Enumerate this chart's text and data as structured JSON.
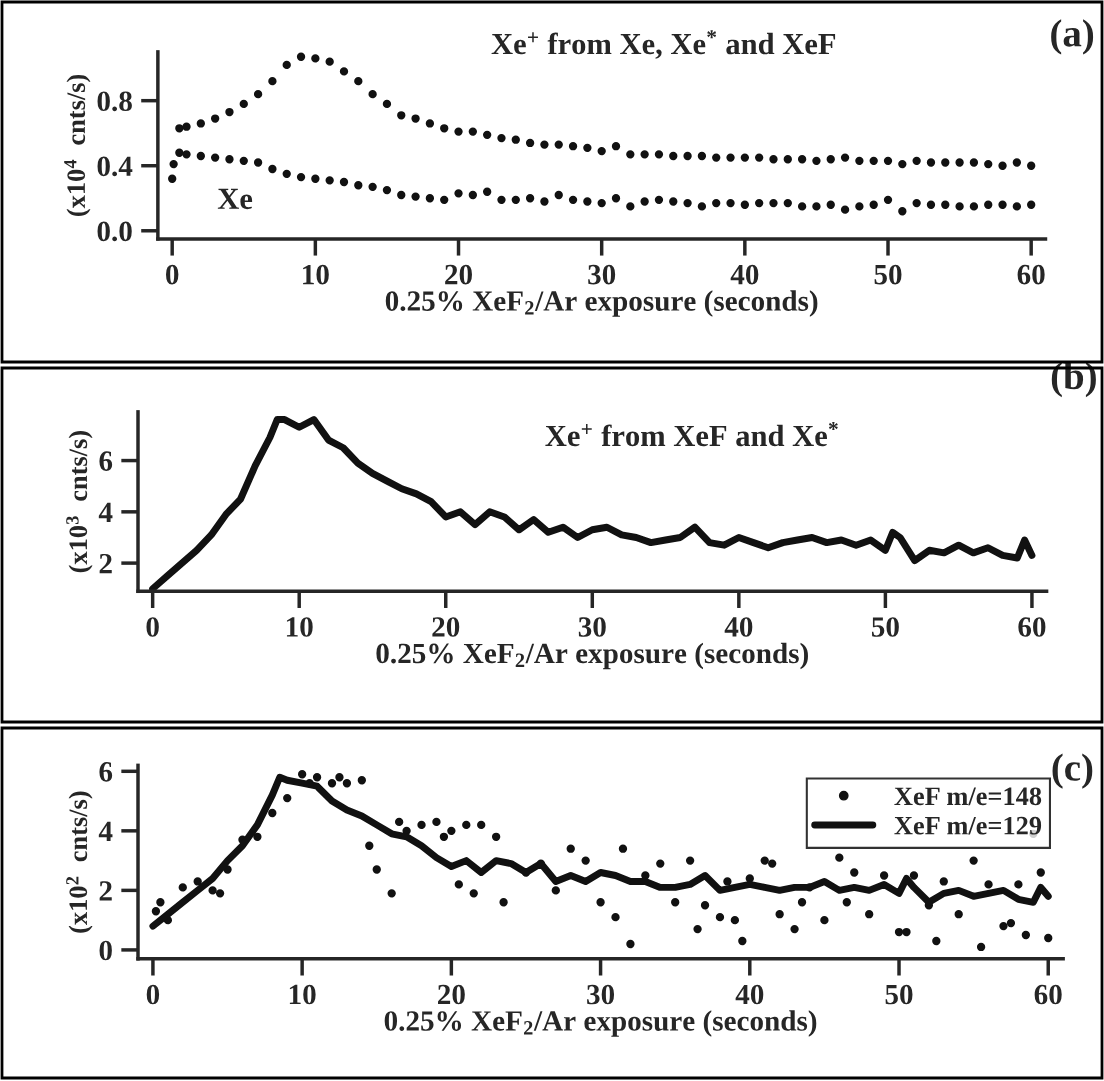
{
  "chart_data": [
    {
      "type": "scatter",
      "xlabel": "0.25% XeF$_{2}$/Ar exposure (seconds)",
      "ylabel": "(x10$^{4}$  cnts/s)",
      "annotations": [
        "(a)"
      ],
      "xlim": [
        -1,
        61
      ],
      "xticks": [
        0,
        10,
        20,
        30,
        40,
        50,
        60
      ],
      "ylim": [
        -0.05,
        1.1
      ],
      "yticks": [
        {
          "value": 0,
          "label": "0.0"
        },
        0.4,
        0.8
      ],
      "marker": "circle",
      "legend": false,
      "series": [
        {
          "name": "Xe$^{+}$ from Xe, Xe$^{*}$ and XeF",
          "color": "#111111",
          "x": [
            0.5,
            1,
            2,
            3,
            4,
            5,
            6,
            7,
            8,
            9,
            10,
            11,
            12,
            13,
            14,
            15,
            16,
            17,
            18,
            19,
            20,
            21,
            22,
            23,
            24,
            25,
            26,
            27,
            28,
            29,
            30,
            31,
            32,
            33,
            34,
            35,
            36,
            37,
            38,
            39,
            40,
            41,
            42,
            43,
            44,
            45,
            46,
            47,
            48,
            49,
            50,
            51,
            52,
            53,
            54,
            55,
            56,
            57,
            58,
            59,
            60
          ],
          "values": [
            0.63,
            0.64,
            0.66,
            0.69,
            0.73,
            0.78,
            0.84,
            0.92,
            1.02,
            1.07,
            1.06,
            1.04,
            0.98,
            0.92,
            0.84,
            0.78,
            0.71,
            0.69,
            0.66,
            0.63,
            0.61,
            0.61,
            0.59,
            0.57,
            0.56,
            0.54,
            0.53,
            0.53,
            0.52,
            0.51,
            0.49,
            0.52,
            0.47,
            0.47,
            0.47,
            0.46,
            0.46,
            0.46,
            0.45,
            0.45,
            0.45,
            0.45,
            0.44,
            0.44,
            0.44,
            0.43,
            0.44,
            0.45,
            0.43,
            0.43,
            0.43,
            0.41,
            0.43,
            0.42,
            0.42,
            0.42,
            0.42,
            0.41,
            0.4,
            0.42,
            0.4
          ]
        },
        {
          "name": "Xe",
          "color": "#111111",
          "x": [
            0,
            0.1,
            0.5,
            1,
            2,
            3,
            4,
            5,
            6,
            7,
            8,
            9,
            10,
            11,
            12,
            13,
            14,
            15,
            16,
            17,
            18,
            19,
            20,
            21,
            22,
            23,
            24,
            25,
            26,
            27,
            28,
            29,
            30,
            31,
            32,
            33,
            34,
            35,
            36,
            37,
            38,
            39,
            40,
            41,
            42,
            43,
            44,
            45,
            46,
            47,
            48,
            49,
            50,
            51,
            52,
            53,
            54,
            55,
            56,
            57,
            58,
            59,
            60
          ],
          "values": [
            0.32,
            0.41,
            0.48,
            0.47,
            0.46,
            0.45,
            0.44,
            0.43,
            0.42,
            0.38,
            0.35,
            0.33,
            0.32,
            0.31,
            0.3,
            0.28,
            0.27,
            0.25,
            0.22,
            0.21,
            0.2,
            0.19,
            0.23,
            0.22,
            0.24,
            0.19,
            0.19,
            0.2,
            0.18,
            0.22,
            0.19,
            0.18,
            0.17,
            0.2,
            0.15,
            0.18,
            0.19,
            0.18,
            0.17,
            0.15,
            0.17,
            0.17,
            0.16,
            0.17,
            0.17,
            0.17,
            0.15,
            0.15,
            0.16,
            0.13,
            0.15,
            0.16,
            0.19,
            0.12,
            0.17,
            0.16,
            0.16,
            0.15,
            0.15,
            0.16,
            0.16,
            0.15,
            0.16
          ]
        }
      ]
    },
    {
      "type": "line",
      "xlabel": "0.25% XeF$_{2}$/Ar exposure (seconds)",
      "ylabel": "(x10$^{3}$  cnts/s)",
      "annotations": [
        "(b)"
      ],
      "xlim": [
        -1,
        61
      ],
      "xticks": [
        0,
        10,
        20,
        30,
        40,
        50,
        60
      ],
      "ylim": [
        0.9,
        7.9
      ],
      "yticks": [
        2,
        4,
        6
      ],
      "line_style": "solid",
      "legend": false,
      "series": [
        {
          "name": "Xe$^{+}$ from XeF and Xe$^{*}$",
          "color": "#111111",
          "x": [
            0,
            1,
            2,
            3,
            4,
            5,
            6,
            7,
            8,
            8.5,
            9,
            10,
            11,
            12,
            13,
            14,
            15,
            16,
            17,
            18,
            19,
            20,
            21,
            22,
            23,
            24,
            25,
            26,
            27,
            28,
            29,
            30,
            31,
            32,
            33,
            34,
            35,
            36,
            37,
            38,
            39,
            40,
            41,
            42,
            43,
            44,
            45,
            46,
            47,
            48,
            49,
            50,
            50.5,
            51,
            52,
            53,
            54,
            55,
            56,
            57,
            58,
            59,
            59.5,
            60
          ],
          "values": [
            1.0,
            1.5,
            2.0,
            2.5,
            3.1,
            3.9,
            4.5,
            5.8,
            6.9,
            7.6,
            7.6,
            7.3,
            7.6,
            6.8,
            6.5,
            5.9,
            5.5,
            5.2,
            4.9,
            4.7,
            4.4,
            3.8,
            4.0,
            3.5,
            4.0,
            3.8,
            3.3,
            3.7,
            3.2,
            3.4,
            3.0,
            3.3,
            3.4,
            3.1,
            3.0,
            2.8,
            2.9,
            3.0,
            3.4,
            2.8,
            2.7,
            3.0,
            2.8,
            2.6,
            2.8,
            2.9,
            3.0,
            2.8,
            2.9,
            2.7,
            2.9,
            2.5,
            3.2,
            3.0,
            2.1,
            2.5,
            2.4,
            2.7,
            2.4,
            2.6,
            2.3,
            2.2,
            2.9,
            2.3
          ]
        }
      ]
    },
    {
      "type": "line",
      "xlabel": "0.25% XeF$_{2}$/Ar exposure (seconds)",
      "ylabel": "(x10$^{2}$  cnts/s)",
      "annotations": [
        "(c)"
      ],
      "xlim": [
        -1,
        61
      ],
      "xticks": [
        0,
        10,
        20,
        30,
        40,
        50,
        60
      ],
      "ylim": [
        -0.3,
        6.2
      ],
      "yticks": [
        0,
        2,
        4,
        6
      ],
      "legend": "top right",
      "series": [
        {
          "name": "XeF m/e=148",
          "type": "scatter",
          "marker": "circle",
          "color": "#111111",
          "x": [
            0.2,
            0.5,
            1,
            2,
            3,
            4,
            4.5,
            5,
            6,
            7,
            8,
            9,
            10,
            10.5,
            11,
            12,
            12.5,
            13,
            14,
            14.5,
            15,
            16,
            16.5,
            17,
            18,
            19,
            19.5,
            20,
            20.5,
            21,
            21.5,
            22,
            23,
            23.5,
            25,
            26,
            27,
            28,
            29,
            30,
            31,
            31.5,
            32,
            33,
            34,
            35,
            36,
            36.5,
            37,
            38,
            38.5,
            39,
            39.5,
            40,
            41,
            41.5,
            42,
            43,
            43.5,
            44,
            45,
            46,
            46.5,
            47,
            48,
            49,
            50,
            50.5,
            51,
            52,
            52.5,
            53,
            54,
            55,
            55.5,
            56,
            57,
            57.5,
            58,
            58.5,
            59,
            59.5,
            60
          ],
          "values": [
            1.3,
            1.6,
            1.0,
            2.1,
            2.3,
            2.0,
            1.9,
            2.7,
            3.7,
            3.8,
            4.6,
            5.1,
            5.9,
            5.6,
            5.8,
            5.6,
            5.8,
            5.6,
            5.7,
            3.5,
            2.7,
            1.9,
            4.3,
            4.0,
            4.2,
            4.3,
            3.8,
            4.0,
            2.2,
            4.2,
            1.9,
            4.2,
            3.8,
            1.6,
            2.6,
            2.9,
            2.0,
            3.4,
            3.0,
            1.6,
            1.1,
            3.4,
            0.2,
            2.5,
            2.9,
            1.6,
            3.0,
            0.7,
            1.5,
            1.1,
            2.3,
            1.0,
            0.3,
            2.4,
            3.0,
            2.9,
            1.2,
            0.7,
            1.6,
            2.1,
            1.0,
            3.1,
            1.6,
            2.6,
            1.2,
            2.5,
            0.6,
            0.6,
            2.5,
            1.5,
            0.3,
            2.3,
            1.2,
            3.0,
            0.1,
            2.2,
            0.8,
            0.9,
            2.2,
            0.5,
            3.9,
            2.6,
            0.4
          ]
        },
        {
          "name": "XeF m/e=129",
          "type": "line",
          "line_style": "solid",
          "color": "#111111",
          "x": [
            0,
            1,
            2,
            3,
            4,
            5,
            6,
            7,
            8,
            8.5,
            9,
            10,
            11,
            12,
            13,
            14,
            15,
            16,
            17,
            18,
            19,
            20,
            21,
            22,
            23,
            24,
            25,
            26,
            27,
            28,
            29,
            30,
            31,
            32,
            33,
            34,
            35,
            36,
            37,
            38,
            39,
            40,
            41,
            42,
            43,
            44,
            45,
            46,
            47,
            48,
            49,
            50,
            50.5,
            51,
            52,
            53,
            54,
            55,
            56,
            57,
            58,
            59,
            59.5,
            60
          ],
          "values": [
            0.8,
            1.2,
            1.6,
            2.0,
            2.4,
            3.0,
            3.5,
            4.2,
            5.2,
            5.8,
            5.7,
            5.6,
            5.5,
            5.0,
            4.7,
            4.5,
            4.2,
            3.9,
            3.8,
            3.5,
            3.1,
            2.8,
            3.0,
            2.6,
            3.0,
            2.9,
            2.6,
            2.9,
            2.3,
            2.5,
            2.3,
            2.6,
            2.5,
            2.3,
            2.3,
            2.1,
            2.1,
            2.2,
            2.5,
            2.0,
            2.1,
            2.2,
            2.1,
            2.0,
            2.1,
            2.1,
            2.3,
            2.0,
            2.1,
            2.0,
            2.2,
            1.9,
            2.4,
            2.1,
            1.6,
            1.9,
            2.0,
            1.8,
            1.9,
            2.0,
            1.7,
            1.6,
            2.1,
            1.8
          ]
        }
      ]
    }
  ]
}
